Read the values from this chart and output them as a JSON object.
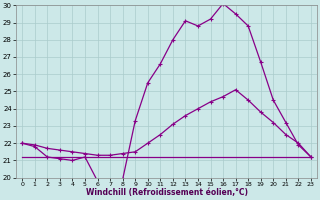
{
  "xlabel": "Windchill (Refroidissement éolien,°C)",
  "background_color": "#cce8e8",
  "grid_color": "#aacccc",
  "line_color": "#880088",
  "x": [
    0,
    1,
    2,
    3,
    4,
    5,
    6,
    7,
    8,
    9,
    10,
    11,
    12,
    13,
    14,
    15,
    16,
    17,
    18,
    19,
    20,
    21,
    22,
    23
  ],
  "line1": [
    22.0,
    21.8,
    21.2,
    21.1,
    21.0,
    21.2,
    19.8,
    19.7,
    19.9,
    23.3,
    25.5,
    26.6,
    28.0,
    29.1,
    28.8,
    29.2,
    30.1,
    29.5,
    28.8,
    26.7,
    24.5,
    23.2,
    21.9,
    21.2
  ],
  "line2": [
    22.0,
    21.9,
    21.7,
    21.6,
    21.5,
    21.4,
    21.3,
    21.3,
    21.4,
    21.5,
    22.0,
    22.5,
    23.1,
    23.6,
    24.0,
    24.4,
    24.7,
    25.1,
    24.5,
    23.8,
    23.2,
    22.5,
    22.0,
    21.2
  ],
  "line3": [
    21.2,
    21.2,
    21.2,
    21.2,
    21.2,
    21.2,
    21.2,
    21.2,
    21.2,
    21.2,
    21.2,
    21.2,
    21.2,
    21.2,
    21.2,
    21.2,
    21.2,
    21.2,
    21.2,
    21.2,
    21.2,
    21.2,
    21.2,
    21.2
  ],
  "ylim": [
    20,
    30
  ],
  "yticks": [
    20,
    21,
    22,
    23,
    24,
    25,
    26,
    27,
    28,
    29,
    30
  ],
  "ytick_labels": [
    "20",
    "21",
    "22",
    "23",
    "24",
    "25",
    "26",
    "27",
    "28",
    "29",
    "30"
  ]
}
